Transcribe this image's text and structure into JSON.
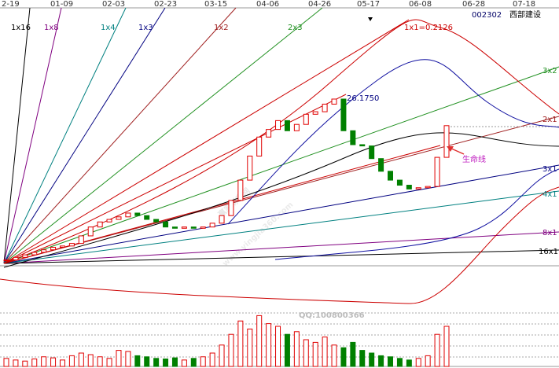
{
  "header": {
    "code": "002302",
    "name": "西部建设"
  },
  "dates": [
    "2-19",
    "01-09",
    "02-03",
    "02-23",
    "03-15",
    "04-06",
    "04-26",
    "05-17",
    "06-08",
    "06-28",
    "07-18"
  ],
  "gann_labels": {
    "l1x16": "1x16",
    "l1x8": "1x8",
    "l1x4": "1x4",
    "l1x3": "1x3",
    "l1x2": "1x2",
    "l2x3": "2x3",
    "l1x1": "1x1=0.2126",
    "l3x2": "3x2",
    "l2x1": "2x1",
    "l3x1": "3x1",
    "l4x1": "4x1",
    "l8x1": "8x1",
    "l16x1": "16x1"
  },
  "annotations": {
    "high": "26.1750",
    "lifeline": "生命线",
    "qq": "QQ:100800366",
    "watermark_site": "www.yingjia360.com",
    "watermark_brand": "赢家财富网"
  },
  "chart_data": {
    "type": "candlestick",
    "closes": [
      13.3,
      13.5,
      13.7,
      13.9,
      14.1,
      14.3,
      14.4,
      14.6,
      15.2,
      15.9,
      16.3,
      16.5,
      16.7,
      17.0,
      16.8,
      16.5,
      16.3,
      15.9,
      15.8,
      15.9,
      15.8,
      15.9,
      16.2,
      16.8,
      18.0,
      19.6,
      21.5,
      23.0,
      23.6,
      24.3,
      23.5,
      24.0,
      24.8,
      25.0,
      25.6,
      26.0,
      23.5,
      22.4,
      22.3,
      21.3,
      20.3,
      19.6,
      19.2,
      18.9,
      19.0,
      19.1,
      21.4,
      23.9
    ],
    "volumes": [
      15,
      12,
      10,
      14,
      18,
      16,
      12,
      20,
      25,
      22,
      18,
      15,
      30,
      28,
      20,
      18,
      15,
      14,
      16,
      12,
      15,
      18,
      25,
      40,
      60,
      85,
      70,
      95,
      80,
      75,
      60,
      65,
      50,
      45,
      55,
      40,
      35,
      45,
      30,
      25,
      20,
      18,
      15,
      12,
      15,
      20,
      60,
      75
    ],
    "ylim": [
      9.3,
      33.2
    ],
    "vlim": [
      0,
      100
    ]
  }
}
